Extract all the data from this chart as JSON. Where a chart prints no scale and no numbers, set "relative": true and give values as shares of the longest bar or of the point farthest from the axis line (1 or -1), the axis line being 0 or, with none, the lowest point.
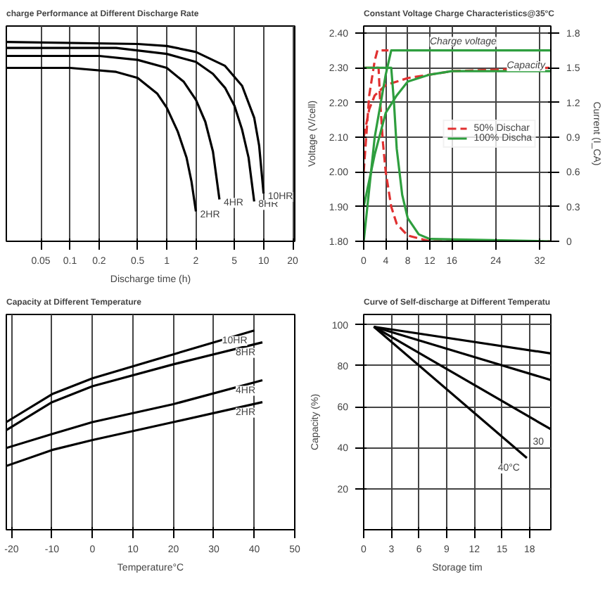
{
  "chart_data": [
    {
      "type": "line",
      "title": "charge Performance at Different Discharge Rate",
      "xlabel": "Discharge time (h)",
      "relative": true,
      "log": "x",
      "grid": "x",
      "legend": false,
      "xlim": [
        0.022,
        21
      ],
      "xticks": [
        0.05,
        0.1,
        0.2,
        0.5,
        1,
        2,
        5,
        10,
        20
      ],
      "series": [
        {
          "name": "2HR",
          "color": "#000000",
          "x": [
            0.022,
            0.1,
            0.3,
            0.5,
            0.8,
            1,
            1.3,
            1.6,
            1.8,
            2
          ],
          "values": [
            0.87,
            0.87,
            0.85,
            0.82,
            0.74,
            0.67,
            0.55,
            0.42,
            0.3,
            0.15
          ]
        },
        {
          "name": "4HR",
          "color": "#000000",
          "x": [
            0.022,
            0.2,
            0.5,
            1,
            1.5,
            2,
            2.5,
            3,
            3.5
          ],
          "values": [
            0.93,
            0.93,
            0.91,
            0.87,
            0.8,
            0.71,
            0.6,
            0.45,
            0.21
          ]
        },
        {
          "name": "8HR",
          "color": "#000000",
          "x": [
            0.022,
            0.3,
            1,
            2,
            3,
            4,
            5,
            6,
            7,
            8
          ],
          "values": [
            0.97,
            0.97,
            0.94,
            0.9,
            0.84,
            0.77,
            0.68,
            0.56,
            0.42,
            0.2
          ]
        },
        {
          "name": "10HR",
          "color": "#000000",
          "x": [
            0.022,
            0.5,
            1,
            2,
            4,
            6,
            8,
            9,
            10
          ],
          "values": [
            1.0,
            0.99,
            0.98,
            0.95,
            0.88,
            0.78,
            0.62,
            0.48,
            0.24
          ]
        }
      ]
    },
    {
      "type": "line",
      "title": "Constant Voltage Charge Characteristics@35°C",
      "ylabel": "Voltage (V/cell)",
      "y2label": "Current (I_CA)",
      "grid": true,
      "legend": "right",
      "xlim": [
        0,
        34
      ],
      "xticks": [
        0,
        4,
        8,
        12,
        16,
        24,
        32
      ],
      "ylim": [
        1.8,
        2.42
      ],
      "yticks": [
        {
          "value": 1.8,
          "label": "1.80"
        },
        {
          "value": 1.9,
          "label": "1.90"
        },
        {
          "value": 2.0,
          "label": "2.00"
        },
        {
          "value": 2.1,
          "label": "2.10"
        },
        {
          "value": 2.2,
          "label": "2.20"
        },
        {
          "value": 2.3,
          "label": "2.30"
        },
        {
          "value": 2.4,
          "label": "2.40"
        }
      ],
      "y2lim": [
        0,
        1.86
      ],
      "y2ticks": [
        0,
        0.3,
        0.6,
        0.9,
        1.2,
        1.5,
        1.8
      ],
      "annotations": [
        {
          "text": "Charge voltage",
          "x": 12,
          "y": 2.36
        },
        {
          "text": "Capacity",
          "x": 26,
          "y": 2.29
        }
      ],
      "series": [
        {
          "color": "#e03030",
          "line_style": "dashed",
          "x": [
            0,
            1,
            2,
            2.5,
            4.5
          ],
          "values": [
            2.0,
            2.22,
            2.32,
            2.35,
            2.35
          ]
        },
        {
          "name": "50% Dischar",
          "color": "#e03030",
          "line_style": "dashed",
          "axis": "y2",
          "x": [
            0,
            2.7,
            3,
            3.5,
            4,
            5,
            6,
            8,
            12,
            34
          ],
          "values": [
            1.5,
            1.5,
            1.2,
            0.85,
            0.6,
            0.3,
            0.15,
            0.05,
            0.0,
            0.0
          ]
        },
        {
          "color": "#e03030",
          "line_style": "dashed",
          "x": [
            0,
            1,
            2,
            4,
            6,
            8,
            12,
            16,
            34
          ],
          "values": [
            2.1,
            2.18,
            2.22,
            2.25,
            2.26,
            2.27,
            2.28,
            2.29,
            2.3
          ]
        },
        {
          "color": "#2e9e3e",
          "line_style": "solid",
          "x": [
            0,
            2,
            4,
            5,
            34
          ],
          "values": [
            1.8,
            2.1,
            2.28,
            2.35,
            2.35
          ]
        },
        {
          "name": "100% Discha",
          "color": "#2e9e3e",
          "line_style": "solid",
          "axis": "y2",
          "x": [
            0,
            5,
            5.5,
            6,
            7,
            8,
            10,
            12,
            34
          ],
          "values": [
            1.5,
            1.5,
            1.2,
            0.8,
            0.4,
            0.2,
            0.06,
            0.02,
            0.0
          ]
        },
        {
          "color": "#2e9e3e",
          "line_style": "solid",
          "x": [
            0,
            2,
            4,
            6,
            8,
            12,
            16,
            34
          ],
          "values": [
            1.9,
            2.05,
            2.17,
            2.22,
            2.26,
            2.28,
            2.29,
            2.29
          ]
        }
      ]
    },
    {
      "type": "line",
      "title": "Capacity at Different Temperature",
      "xlabel": "Temperature°C",
      "relative": true,
      "grid": "x",
      "legend": false,
      "xlim": [
        -21.3,
        50
      ],
      "xticks": [
        -20,
        -10,
        0,
        10,
        20,
        30,
        40,
        50
      ],
      "series": [
        {
          "name": "10HR",
          "color": "#000000",
          "x": [
            -21.3,
            -10,
            0,
            20,
            40
          ],
          "values": [
            0.54,
            0.68,
            0.76,
            0.88,
            1.0
          ]
        },
        {
          "name": "8HR",
          "color": "#000000",
          "x": [
            -21.3,
            -10,
            0,
            20,
            42
          ],
          "values": [
            0.5,
            0.64,
            0.72,
            0.83,
            0.94
          ]
        },
        {
          "name": "4HR",
          "color": "#000000",
          "x": [
            -21.3,
            -10,
            0,
            20,
            42
          ],
          "values": [
            0.41,
            0.48,
            0.54,
            0.63,
            0.75
          ]
        },
        {
          "name": "2HR",
          "color": "#000000",
          "x": [
            -21.3,
            -10,
            0,
            20,
            42
          ],
          "values": [
            0.32,
            0.4,
            0.45,
            0.54,
            0.64
          ]
        }
      ]
    },
    {
      "type": "line",
      "title": "Curve of Self-discharge at Different Temperatu",
      "xlabel": "Storage tim",
      "ylabel": "Capacity (%)",
      "grid": true,
      "legend": false,
      "xlim": [
        0,
        20.3
      ],
      "xticks": [
        0,
        3,
        6,
        9,
        12,
        15,
        18
      ],
      "ylim": [
        0,
        105
      ],
      "yticks": [
        20,
        40,
        60,
        80,
        100
      ],
      "series": [
        {
          "color": "#000000",
          "x": [
            1.1,
            20.3
          ],
          "values": [
            99,
            86
          ]
        },
        {
          "color": "#000000",
          "x": [
            1.1,
            20.3
          ],
          "values": [
            99,
            73
          ]
        },
        {
          "name": "30",
          "color": "#000000",
          "x": [
            1.1,
            20.3
          ],
          "values": [
            99,
            49
          ]
        },
        {
          "name": "40°C",
          "color": "#000000",
          "x": [
            1.1,
            17.7
          ],
          "values": [
            99,
            35
          ]
        }
      ]
    }
  ]
}
